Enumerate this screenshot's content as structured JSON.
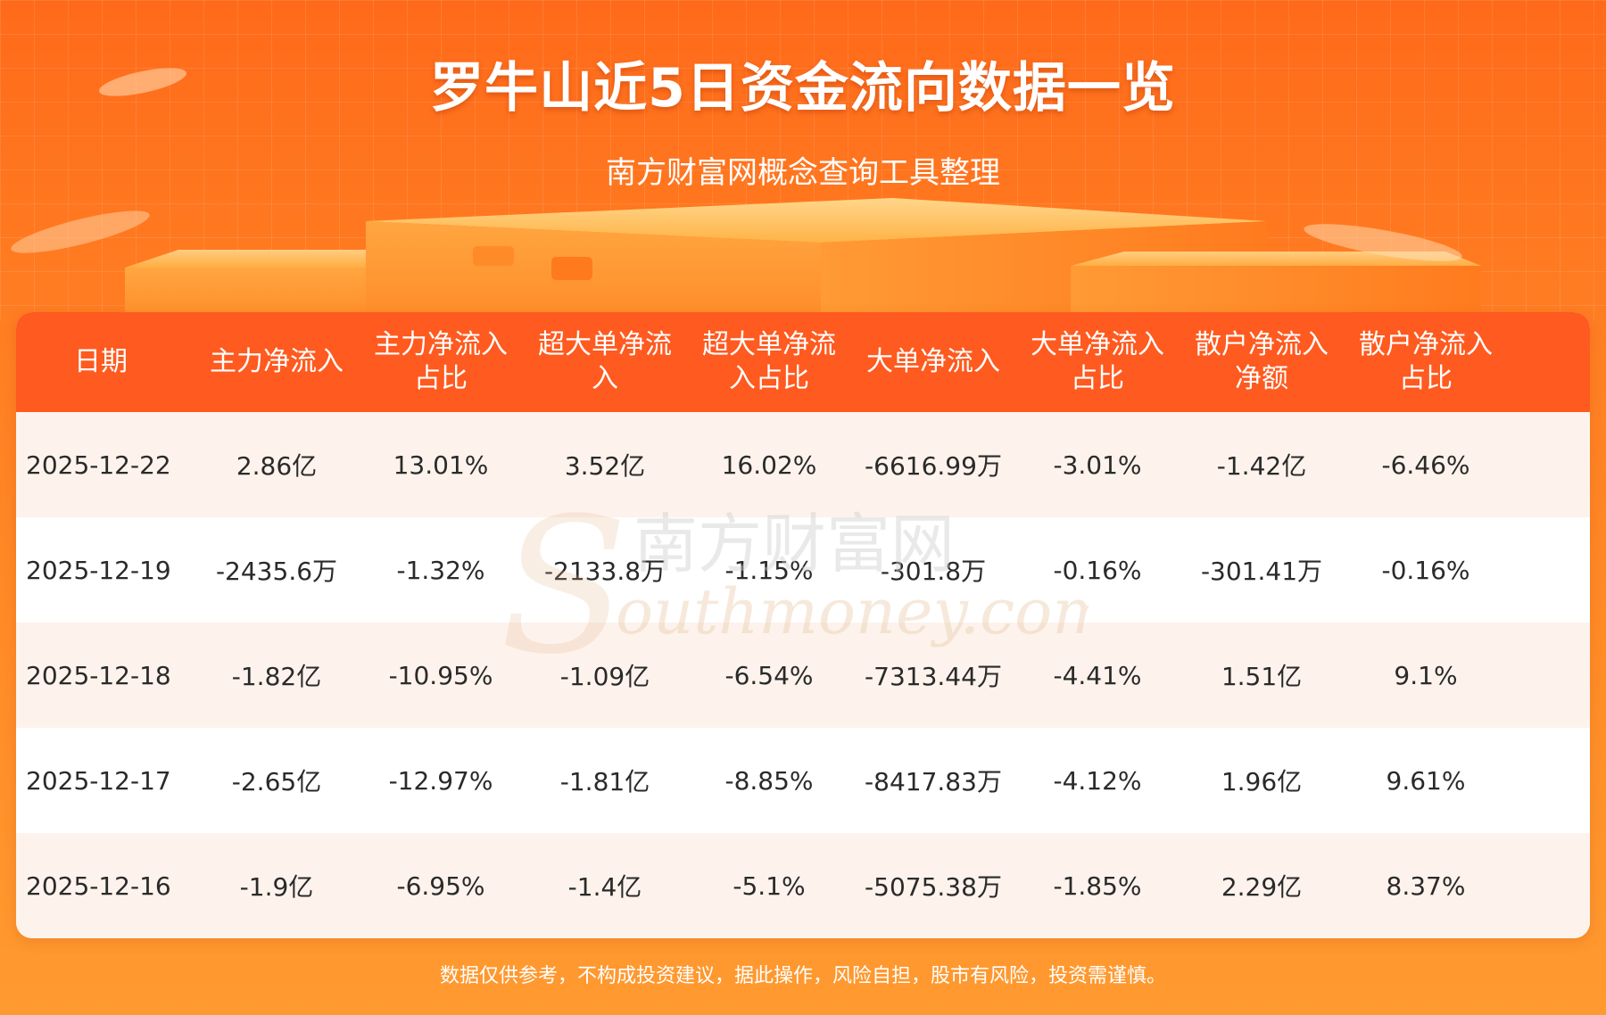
{
  "header": {
    "title": "罗牛山近5日资金流向数据一览",
    "subtitle": "南方财富网概念查询工具整理"
  },
  "table": {
    "columns": [
      "日期",
      "主力净流入",
      "主力净流入\n占比",
      "超大单净流\n入",
      "超大单净流\n入占比",
      "大单净流入",
      "大单净流入\n占比",
      "散户净流入\n净额",
      "散户净流入\n占比"
    ],
    "rows": [
      [
        "2025-12-22",
        "2.86亿",
        "13.01%",
        "3.52亿",
        "16.02%",
        "-6616.99万",
        "-3.01%",
        "-1.42亿",
        "-6.46%"
      ],
      [
        "2025-12-19",
        "-2435.6万",
        "-1.32%",
        "-2133.8万",
        "-1.15%",
        "-301.8万",
        "-0.16%",
        "-301.41万",
        "-0.16%"
      ],
      [
        "2025-12-18",
        "-1.82亿",
        "-10.95%",
        "-1.09亿",
        "-6.54%",
        "-7313.44万",
        "-4.41%",
        "1.51亿",
        "9.1%"
      ],
      [
        "2025-12-17",
        "-2.65亿",
        "-12.97%",
        "-1.81亿",
        "-8.85%",
        "-8417.83万",
        "-4.12%",
        "1.96亿",
        "9.61%"
      ],
      [
        "2025-12-16",
        "-1.9亿",
        "-6.95%",
        "-1.4亿",
        "-5.1%",
        "-5075.38万",
        "-1.85%",
        "2.29亿",
        "8.37%"
      ]
    ]
  },
  "watermark": {
    "cn": "南方财富网",
    "en": "outhmoney.com"
  },
  "footer": {
    "disclaimer": "数据仅供参考，不构成投资建议，据此操作，风险自担，股市有风险，投资需谨慎。"
  },
  "colors": {
    "background": "#ff7d22",
    "header_row": "#ff5a1f",
    "row_odd": "#fdf3ec",
    "row_even": "#ffffff",
    "text": "#2a2a2a"
  }
}
